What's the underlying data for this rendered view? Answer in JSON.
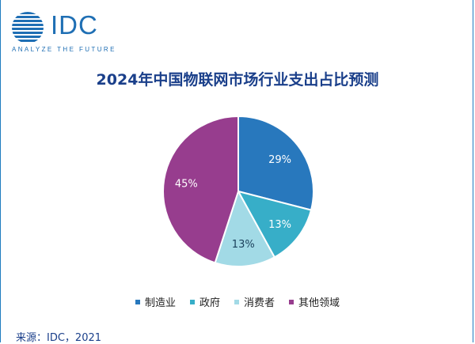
{
  "logo": {
    "name": "IDC",
    "tagline": "ANALYZE THE FUTURE"
  },
  "chart_data": {
    "type": "pie",
    "title": "2024年中国物联网市场行业支出占比预测",
    "categories": [
      "制造业",
      "政府",
      "消费者",
      "其他领域"
    ],
    "values": [
      29,
      13,
      13,
      45
    ],
    "labels": [
      "29%",
      "13%",
      "13%",
      "45%"
    ],
    "colors": [
      "#2878bd",
      "#37aec8",
      "#a2dae6",
      "#973d8e"
    ],
    "legend": "bottom"
  },
  "source": "来源：IDC，2021"
}
